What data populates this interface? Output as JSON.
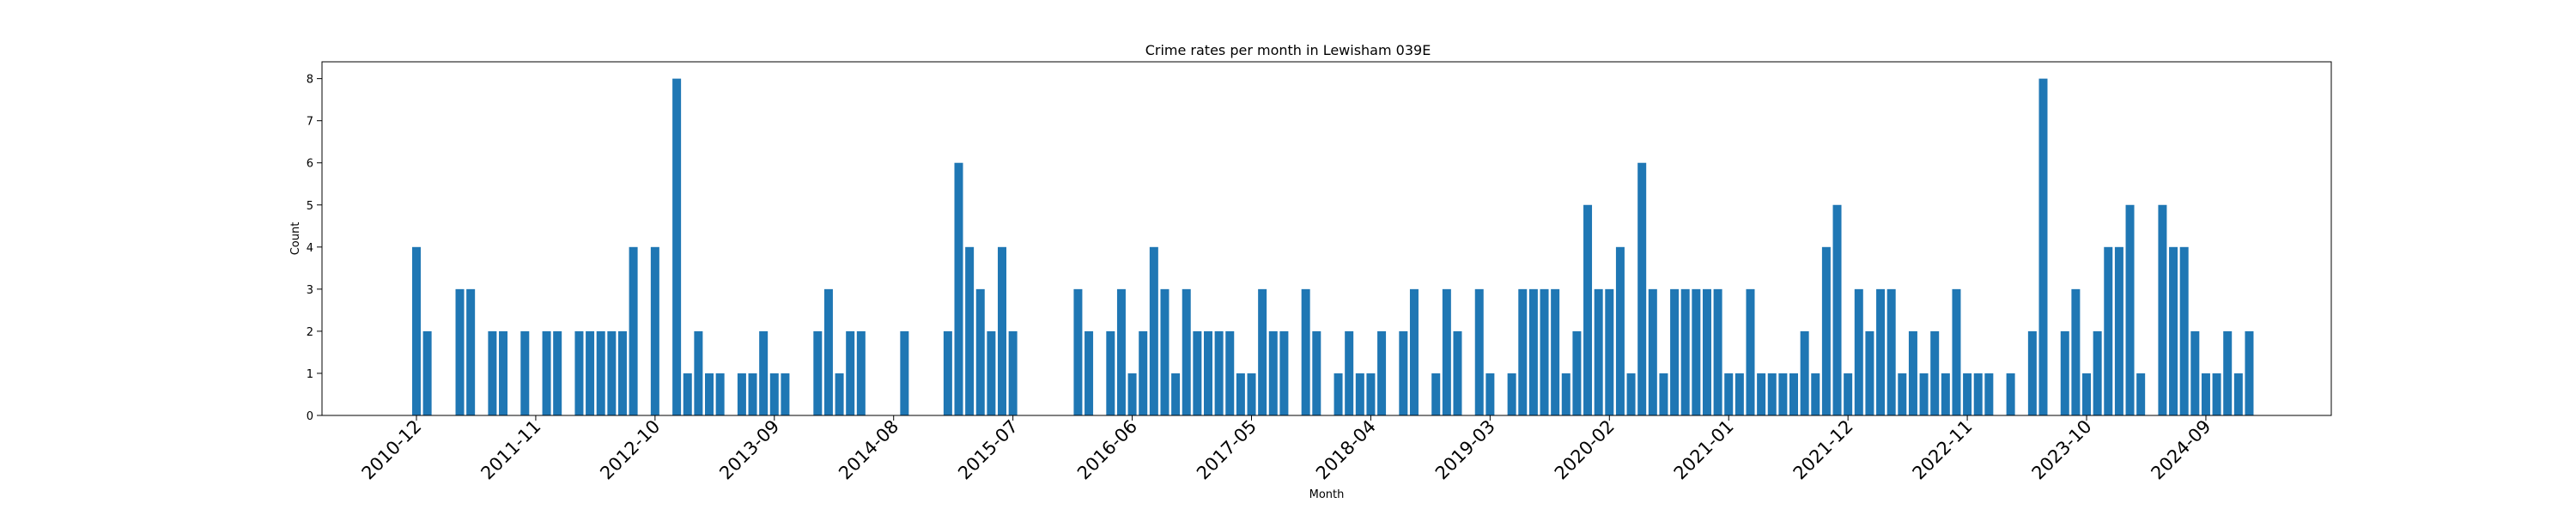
{
  "chart_data": {
    "type": "bar",
    "title": "Crime rates per month in Lewisham 039E",
    "xlabel": "Month",
    "ylabel": "Count",
    "ylim": [
      0,
      8.4
    ],
    "yticks": [
      0,
      1,
      2,
      3,
      4,
      5,
      6,
      7,
      8
    ],
    "xticks": [
      "2010-12",
      "2011-11",
      "2012-10",
      "2013-09",
      "2014-08",
      "2015-07",
      "2016-06",
      "2017-05",
      "2018-04",
      "2019-03",
      "2020-02",
      "2021-01",
      "2021-12",
      "2022-11",
      "2023-10",
      "2024-09"
    ],
    "grid": false,
    "color": "#1f77b4",
    "data": [
      [
        "2010-12",
        4
      ],
      [
        "2011-01",
        2
      ],
      [
        "2011-04",
        3
      ],
      [
        "2011-05",
        3
      ],
      [
        "2011-07",
        2
      ],
      [
        "2011-08",
        2
      ],
      [
        "2011-10",
        2
      ],
      [
        "2011-12",
        2
      ],
      [
        "2012-01",
        2
      ],
      [
        "2012-03",
        2
      ],
      [
        "2012-04",
        2
      ],
      [
        "2012-05",
        2
      ],
      [
        "2012-06",
        2
      ],
      [
        "2012-07",
        2
      ],
      [
        "2012-08",
        4
      ],
      [
        "2012-10",
        4
      ],
      [
        "2012-12",
        8
      ],
      [
        "2013-01",
        1
      ],
      [
        "2013-02",
        2
      ],
      [
        "2013-03",
        1
      ],
      [
        "2013-04",
        1
      ],
      [
        "2013-06",
        1
      ],
      [
        "2013-07",
        1
      ],
      [
        "2013-08",
        2
      ],
      [
        "2013-09",
        1
      ],
      [
        "2013-10",
        1
      ],
      [
        "2014-01",
        2
      ],
      [
        "2014-02",
        3
      ],
      [
        "2014-03",
        1
      ],
      [
        "2014-04",
        2
      ],
      [
        "2014-05",
        2
      ],
      [
        "2014-09",
        2
      ],
      [
        "2015-01",
        2
      ],
      [
        "2015-02",
        6
      ],
      [
        "2015-03",
        4
      ],
      [
        "2015-04",
        3
      ],
      [
        "2015-05",
        2
      ],
      [
        "2015-06",
        4
      ],
      [
        "2015-07",
        2
      ],
      [
        "2016-01",
        3
      ],
      [
        "2016-02",
        2
      ],
      [
        "2016-04",
        2
      ],
      [
        "2016-05",
        3
      ],
      [
        "2016-06",
        1
      ],
      [
        "2016-07",
        2
      ],
      [
        "2016-08",
        4
      ],
      [
        "2016-09",
        3
      ],
      [
        "2016-10",
        1
      ],
      [
        "2016-11",
        3
      ],
      [
        "2016-12",
        2
      ],
      [
        "2017-01",
        2
      ],
      [
        "2017-02",
        2
      ],
      [
        "2017-03",
        2
      ],
      [
        "2017-04",
        1
      ],
      [
        "2017-05",
        1
      ],
      [
        "2017-06",
        3
      ],
      [
        "2017-07",
        2
      ],
      [
        "2017-08",
        2
      ],
      [
        "2017-10",
        3
      ],
      [
        "2017-11",
        2
      ],
      [
        "2018-01",
        1
      ],
      [
        "2018-02",
        2
      ],
      [
        "2018-03",
        1
      ],
      [
        "2018-04",
        1
      ],
      [
        "2018-05",
        2
      ],
      [
        "2018-07",
        2
      ],
      [
        "2018-08",
        3
      ],
      [
        "2018-10",
        1
      ],
      [
        "2018-11",
        3
      ],
      [
        "2018-12",
        2
      ],
      [
        "2019-02",
        3
      ],
      [
        "2019-03",
        1
      ],
      [
        "2019-05",
        1
      ],
      [
        "2019-06",
        3
      ],
      [
        "2019-07",
        3
      ],
      [
        "2019-08",
        3
      ],
      [
        "2019-09",
        3
      ],
      [
        "2019-10",
        1
      ],
      [
        "2019-11",
        2
      ],
      [
        "2019-12",
        5
      ],
      [
        "2020-01",
        3
      ],
      [
        "2020-02",
        3
      ],
      [
        "2020-03",
        4
      ],
      [
        "2020-04",
        1
      ],
      [
        "2020-05",
        6
      ],
      [
        "2020-06",
        3
      ],
      [
        "2020-07",
        1
      ],
      [
        "2020-08",
        3
      ],
      [
        "2020-09",
        3
      ],
      [
        "2020-10",
        3
      ],
      [
        "2020-11",
        3
      ],
      [
        "2020-12",
        3
      ],
      [
        "2021-01",
        1
      ],
      [
        "2021-02",
        1
      ],
      [
        "2021-03",
        3
      ],
      [
        "2021-04",
        1
      ],
      [
        "2021-05",
        1
      ],
      [
        "2021-06",
        1
      ],
      [
        "2021-07",
        1
      ],
      [
        "2021-08",
        2
      ],
      [
        "2021-09",
        1
      ],
      [
        "2021-10",
        4
      ],
      [
        "2021-11",
        5
      ],
      [
        "2021-12",
        1
      ],
      [
        "2022-01",
        3
      ],
      [
        "2022-02",
        2
      ],
      [
        "2022-03",
        3
      ],
      [
        "2022-04",
        3
      ],
      [
        "2022-05",
        1
      ],
      [
        "2022-06",
        2
      ],
      [
        "2022-07",
        1
      ],
      [
        "2022-08",
        2
      ],
      [
        "2022-09",
        1
      ],
      [
        "2022-10",
        3
      ],
      [
        "2022-11",
        1
      ],
      [
        "2022-12",
        1
      ],
      [
        "2023-01",
        1
      ],
      [
        "2023-03",
        1
      ],
      [
        "2023-05",
        2
      ],
      [
        "2023-06",
        8
      ],
      [
        "2023-08",
        2
      ],
      [
        "2023-09",
        3
      ],
      [
        "2023-10",
        1
      ],
      [
        "2023-11",
        2
      ],
      [
        "2023-12",
        4
      ],
      [
        "2024-01",
        4
      ],
      [
        "2024-02",
        5
      ],
      [
        "2024-03",
        1
      ],
      [
        "2024-05",
        5
      ],
      [
        "2024-06",
        4
      ],
      [
        "2024-07",
        4
      ],
      [
        "2024-08",
        2
      ],
      [
        "2024-09",
        1
      ],
      [
        "2024-10",
        1
      ],
      [
        "2024-11",
        2
      ],
      [
        "2024-12",
        1
      ],
      [
        "2025-01",
        2
      ]
    ]
  }
}
